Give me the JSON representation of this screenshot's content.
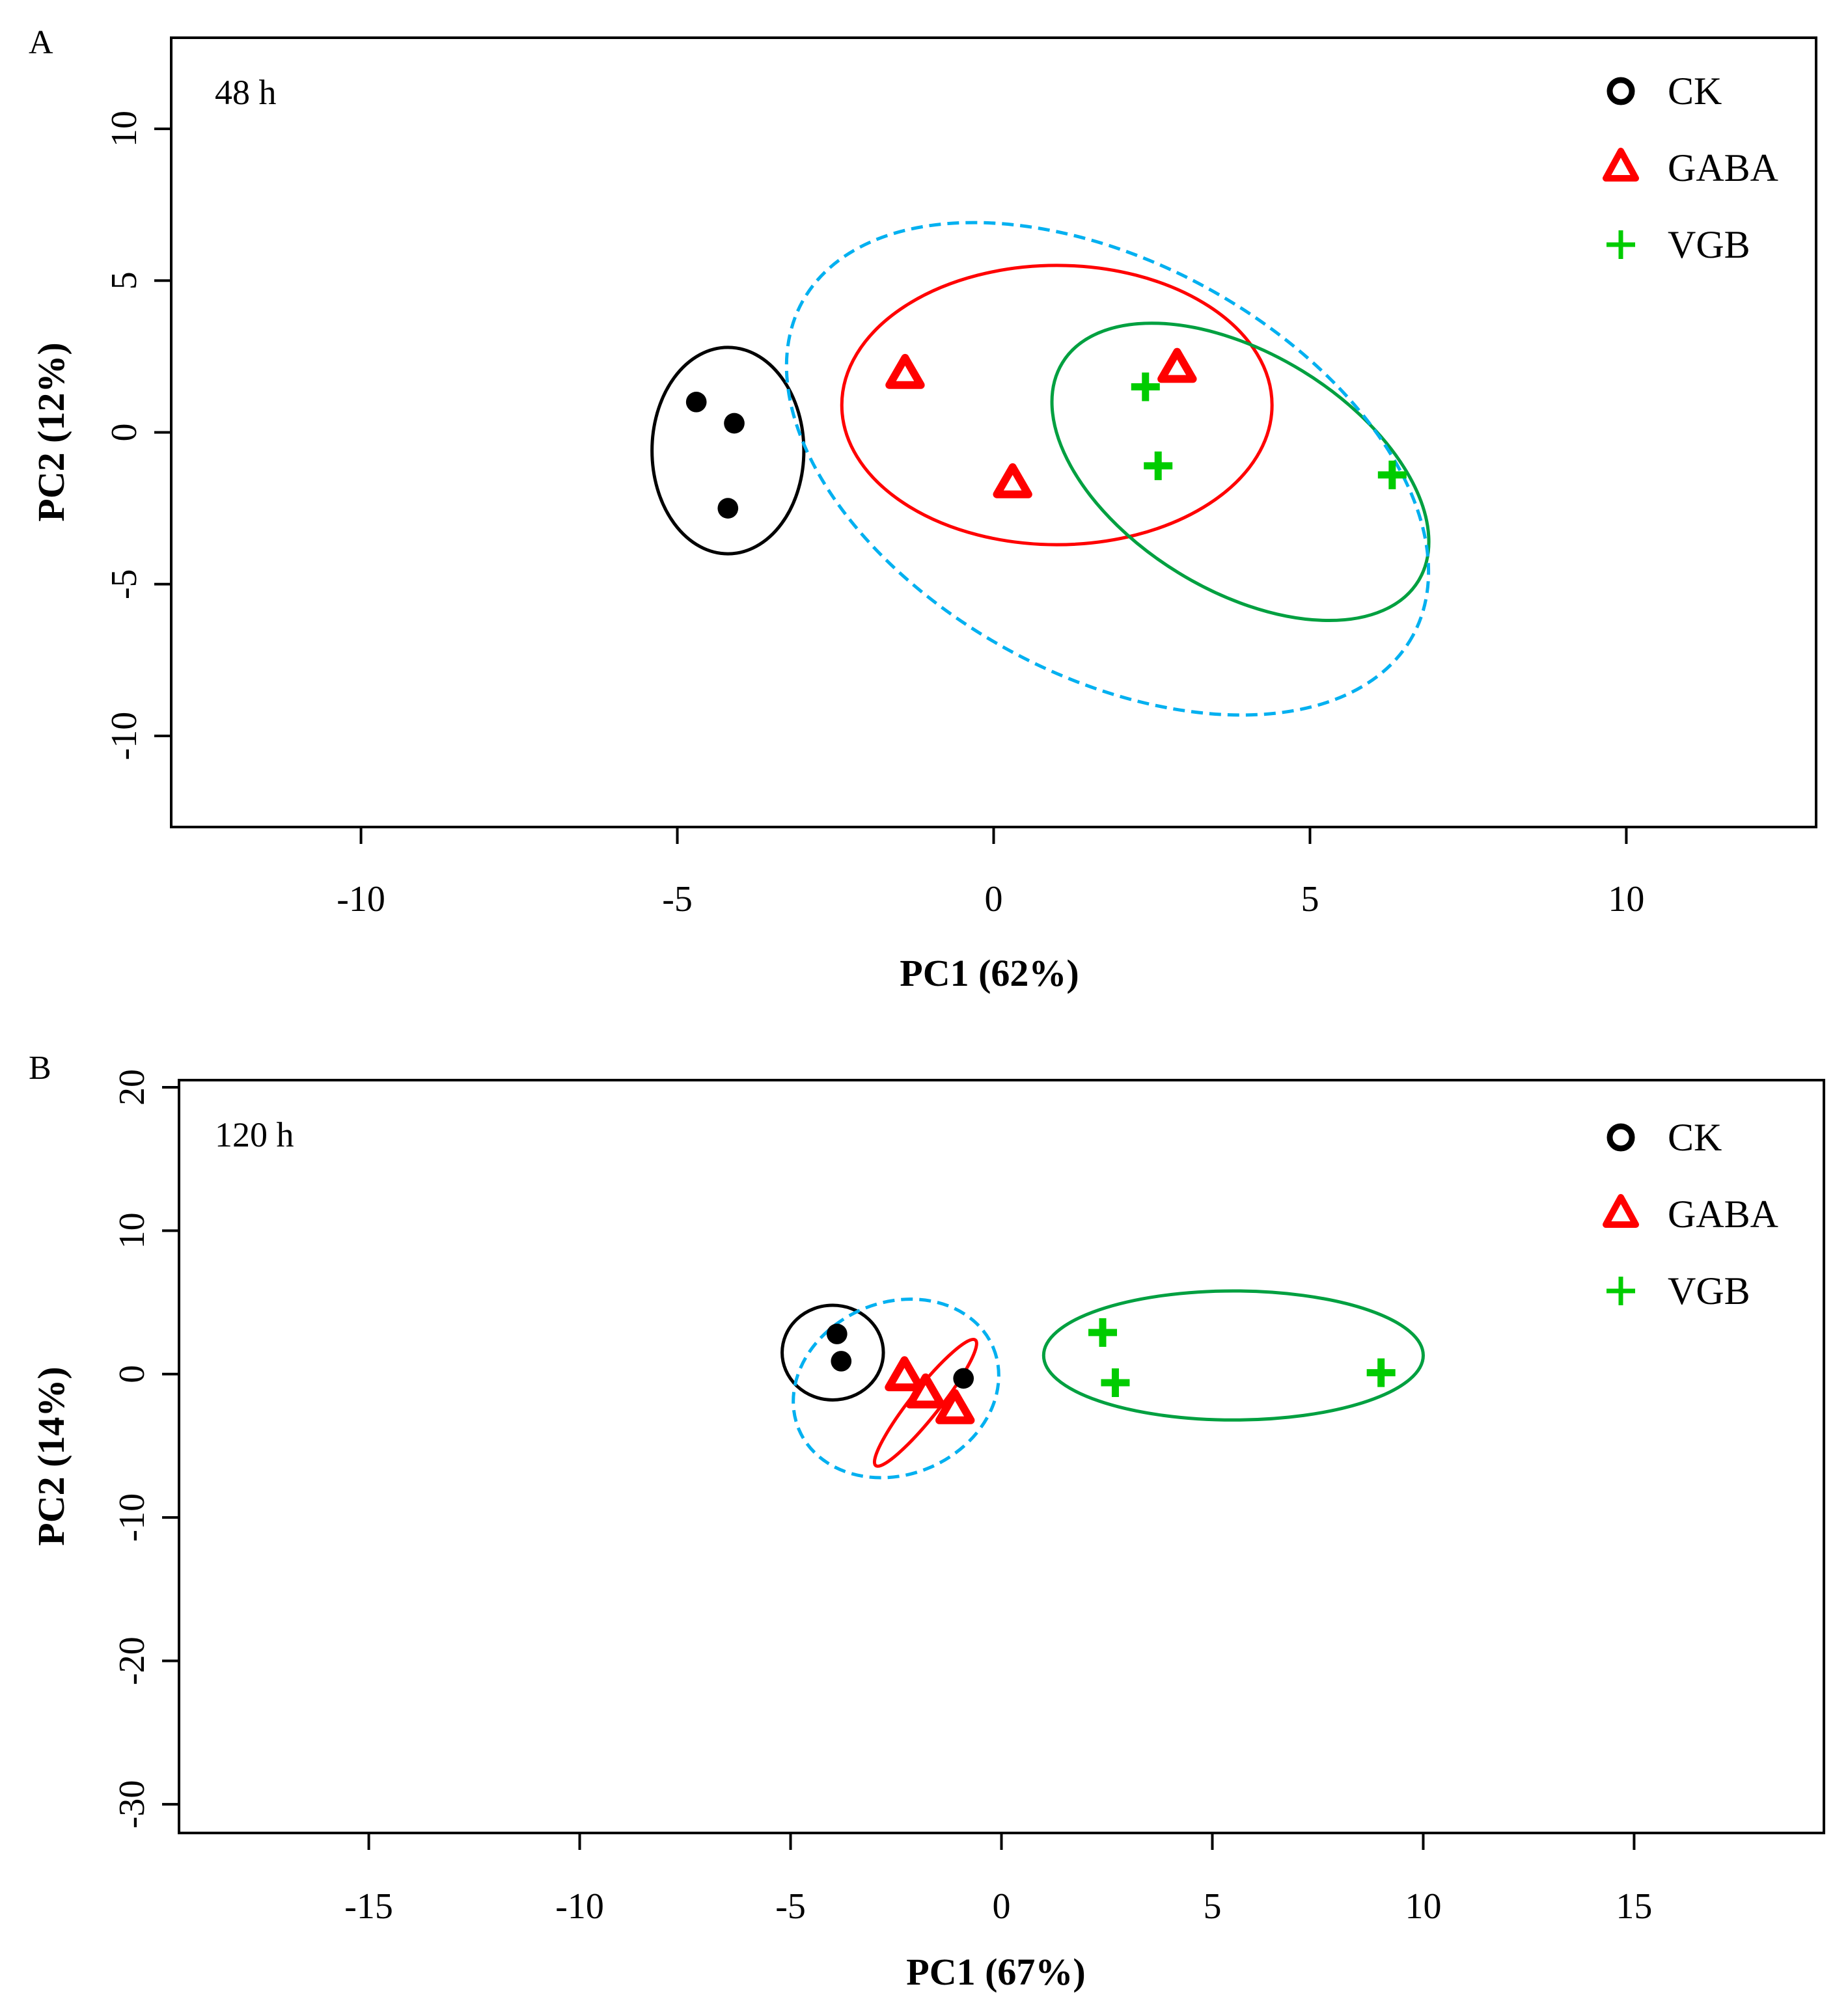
{
  "chart_data": [
    {
      "type": "scatter",
      "panel_label": "A",
      "title": "48 h",
      "xlabel": "PC1 (62%)",
      "ylabel": "PC2 (12%)",
      "xlim": [
        -13,
        13
      ],
      "ylim": [
        -13,
        13
      ],
      "xticks": [
        -10,
        -5,
        0,
        5,
        10
      ],
      "yticks": [
        -10,
        -5,
        0,
        5,
        10
      ],
      "legend_position": "top-right",
      "series": [
        {
          "name": "CK",
          "marker": "circle",
          "color": "#000000",
          "points": [
            [
              -4.7,
              1.0
            ],
            [
              -4.1,
              0.3
            ],
            [
              -4.2,
              -2.5
            ]
          ]
        },
        {
          "name": "GABA",
          "marker": "triangle",
          "color": "#ff0000",
          "points": [
            [
              -1.4,
              1.9
            ],
            [
              0.3,
              -1.7
            ],
            [
              2.9,
              2.1
            ]
          ]
        },
        {
          "name": "VGB",
          "marker": "plus",
          "color": "#00cc00",
          "points": [
            [
              2.4,
              1.5
            ],
            [
              2.6,
              -1.1
            ],
            [
              6.3,
              -1.4
            ]
          ]
        }
      ],
      "ellipses": [
        {
          "color": "#000000",
          "dashed": false,
          "cx": -4.2,
          "cy": -0.6,
          "rx": 1.2,
          "ry": 3.4,
          "rot": 0
        },
        {
          "color": "#ff0000",
          "dashed": false,
          "cx": 1.0,
          "cy": 0.9,
          "rx": 3.4,
          "ry": 4.6,
          "rot": 0
        },
        {
          "color": "#00a040",
          "dashed": false,
          "cx": 3.9,
          "cy": -1.3,
          "rx": 3.3,
          "ry": 3.9,
          "rot": -0.55
        },
        {
          "color": "#00b0f0",
          "dashed": true,
          "cx": 1.8,
          "cy": -1.2,
          "rx": 5.5,
          "ry": 6.8,
          "rot": -0.5
        }
      ]
    },
    {
      "type": "scatter",
      "panel_label": "B",
      "title": "120 h",
      "xlabel": "PC1 (67%)",
      "ylabel": "PC2 (14%)",
      "xlim": [
        -19.5,
        19.5
      ],
      "ylim": [
        -32,
        20.5
      ],
      "xticks": [
        -15,
        -10,
        -5,
        0,
        5,
        10,
        15
      ],
      "yticks": [
        -30,
        -20,
        -10,
        0,
        10,
        20
      ],
      "legend_position": "top-right",
      "series": [
        {
          "name": "CK",
          "marker": "circle",
          "color": "#000000",
          "points": [
            [
              -3.9,
              2.8
            ],
            [
              -3.8,
              0.9
            ],
            [
              -0.9,
              -0.3
            ]
          ]
        },
        {
          "name": "GABA",
          "marker": "triangle",
          "color": "#ff0000",
          "points": [
            [
              -2.3,
              -0.2
            ],
            [
              -1.8,
              -1.4
            ],
            [
              -1.1,
              -2.5
            ]
          ]
        },
        {
          "name": "VGB",
          "marker": "plus",
          "color": "#00cc00",
          "points": [
            [
              2.4,
              2.9
            ],
            [
              2.7,
              -0.6
            ],
            [
              9.0,
              0.1
            ]
          ]
        }
      ],
      "ellipses": [
        {
          "color": "#000000",
          "dashed": false,
          "cx": -4.0,
          "cy": 1.5,
          "rx": 1.2,
          "ry": 3.3,
          "rot": 0
        },
        {
          "color": "#ff0000",
          "dashed": false,
          "cx": -1.8,
          "cy": -2.0,
          "rx": 1.9,
          "ry": 1.0,
          "rot": 0.9
        },
        {
          "color": "#00a040",
          "dashed": false,
          "cx": 5.5,
          "cy": 1.3,
          "rx": 4.5,
          "ry": 4.5,
          "rot": 0
        },
        {
          "color": "#00b0f0",
          "dashed": true,
          "cx": -2.5,
          "cy": -1.0,
          "rx": 2.5,
          "ry": 6.0,
          "rot": 0.4
        }
      ]
    }
  ]
}
